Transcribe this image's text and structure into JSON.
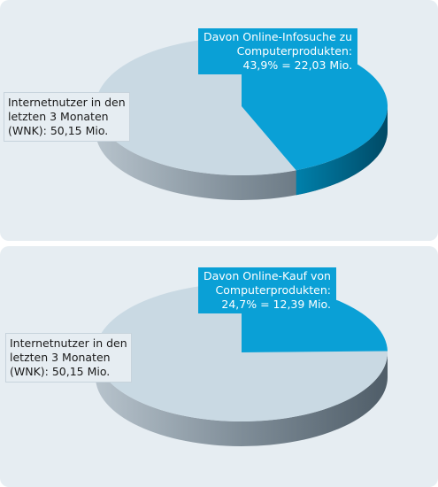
{
  "chart_data": [
    {
      "type": "pie",
      "slices": [
        {
          "label": [
            "Internetnutzer in den",
            "letzten 3 Monaten",
            "(WNK): 50,15 Mio."
          ],
          "value": 56.1,
          "color": "#c9d9e3"
        },
        {
          "label": [
            "Davon Online-Infosuche zu",
            "Computerprodukten:",
            "43,9% = 22,03 Mio."
          ],
          "value": 43.9,
          "color": "#0aa0d6"
        }
      ]
    },
    {
      "type": "pie",
      "slices": [
        {
          "label": [
            "Internetnutzer in den",
            "letzten 3 Monaten",
            "(WNK): 50,15 Mio."
          ],
          "value": 75.3,
          "color": "#c9d9e3"
        },
        {
          "label": [
            "Davon Online-Kauf von",
            "Computerprodukten:",
            "24,7% = 12,39 Mio."
          ],
          "value": 24.7,
          "color": "#0aa0d6"
        }
      ]
    }
  ]
}
